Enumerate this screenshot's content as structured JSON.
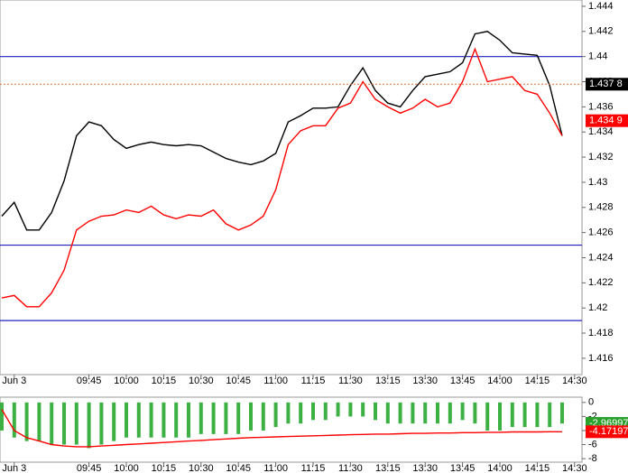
{
  "chart_data": [
    {
      "type": "line",
      "categories": [
        null,
        "Jun 3",
        null,
        null,
        null,
        null,
        null,
        "09:45",
        null,
        null,
        "10:00",
        null,
        null,
        "10:15",
        null,
        null,
        "10:30",
        null,
        null,
        "10:45",
        null,
        null,
        "11:00",
        null,
        null,
        "11:15",
        null,
        null,
        "11:30",
        null,
        null,
        "13:15",
        null,
        null,
        "13:30",
        null,
        null,
        "13:45",
        null,
        null,
        "14:00",
        null,
        null,
        "14:15",
        null,
        null,
        "14:30"
      ],
      "series": [
        {
          "color": "#000000",
          "values": [
            1.4273,
            1.4284,
            1.4262,
            1.4262,
            1.4276,
            1.4301,
            1.4337,
            1.4348,
            1.4345,
            1.4334,
            1.4327,
            1.433,
            1.4332,
            1.433,
            1.4329,
            1.433,
            1.4329,
            1.4324,
            1.4319,
            1.4316,
            1.4314,
            1.4317,
            1.4323,
            1.4348,
            1.4353,
            1.4359,
            1.4359,
            1.436,
            1.4377,
            1.4391,
            1.4373,
            1.4363,
            1.436,
            1.4373,
            1.4384,
            1.4386,
            1.4388,
            1.4395,
            1.4418,
            1.442,
            1.4413,
            1.4403,
            1.4402,
            1.4401,
            1.4377,
            1.4337,
            null
          ]
        },
        {
          "color": "#ff0000",
          "values": [
            1.4208,
            1.421,
            1.4201,
            1.4201,
            1.4212,
            1.423,
            1.4262,
            1.4269,
            1.4273,
            1.4274,
            1.4278,
            1.4276,
            1.4281,
            1.4274,
            1.4271,
            1.4274,
            1.4273,
            1.4278,
            1.4267,
            1.4262,
            1.4266,
            1.4273,
            1.4294,
            1.433,
            1.4341,
            1.4345,
            1.4345,
            1.4359,
            1.4363,
            1.438,
            1.4366,
            1.436,
            1.4355,
            1.4359,
            1.4366,
            1.436,
            1.4363,
            1.438,
            1.4406,
            1.438,
            1.4382,
            1.4384,
            1.4373,
            1.437,
            1.4355,
            1.4337,
            null
          ]
        }
      ],
      "hlines": [
        {
          "value": 1.44,
          "color": "#2020c0"
        },
        {
          "value": 1.425,
          "color": "#2020c0"
        },
        {
          "value": 1.419,
          "color": "#2020c0"
        }
      ],
      "price_tags": [
        {
          "value": 1.4378,
          "label": "1.437 8",
          "color": "#000000",
          "guide_color": "#e07030"
        },
        {
          "value": 1.4349,
          "label": "1.434 9",
          "color": "#ff0000"
        }
      ],
      "ylim": [
        1.4147,
        1.4445
      ],
      "yticks": [
        1.416,
        1.418,
        1.42,
        1.422,
        1.424,
        1.426,
        1.428,
        1.43,
        1.432,
        1.434,
        1.436,
        1.438,
        1.44,
        1.442,
        1.444
      ]
    },
    {
      "type": "histogram-line",
      "categories": [
        null,
        "Jun 3",
        null,
        null,
        null,
        null,
        null,
        "09:45",
        null,
        null,
        "10:00",
        null,
        null,
        "10:15",
        null,
        null,
        "10:30",
        null,
        null,
        "10:45",
        null,
        null,
        "11:00",
        null,
        null,
        "11:15",
        null,
        null,
        "11:30",
        null,
        null,
        "13:15",
        null,
        null,
        "13:30",
        null,
        null,
        "13:45",
        null,
        null,
        "14:00",
        null,
        null,
        "14:15",
        null,
        null,
        "14:30"
      ],
      "series": [
        {
          "kind": "bar",
          "color": "#3cb043",
          "values": [
            -4,
            -5,
            -5.5,
            -5.5,
            -6,
            -6,
            -6,
            -6.5,
            -6,
            -5.5,
            -5,
            -5,
            -5,
            -5,
            -5,
            -5,
            -4.5,
            -4.5,
            -4.5,
            -4.5,
            -4,
            -4,
            -3.5,
            -3,
            -3,
            -2.5,
            -2.5,
            -2,
            -2,
            -2,
            -2.5,
            -3,
            -3,
            -3,
            -3,
            -3,
            -3,
            -2.5,
            -3,
            -4,
            -4,
            -3.5,
            -3.5,
            -3.5,
            -3.5,
            -3,
            null
          ]
        },
        {
          "kind": "line",
          "color": "#ff0000",
          "values": [
            -1,
            -4,
            -5,
            -5.5,
            -6,
            -6.2,
            -6.3,
            -6.3,
            -6.2,
            -6.1,
            -6,
            -5.9,
            -5.8,
            -5.7,
            -5.6,
            -5.5,
            -5.4,
            -5.3,
            -5.2,
            -5.1,
            -5,
            -4.95,
            -4.9,
            -4.85,
            -4.8,
            -4.75,
            -4.7,
            -4.65,
            -4.6,
            -4.55,
            -4.5,
            -4.5,
            -4.45,
            -4.4,
            -4.4,
            -4.35,
            -4.35,
            -4.3,
            -4.3,
            -4.25,
            -4.25,
            -4.2,
            -4.2,
            -4.2,
            -4.17,
            -4.17,
            null
          ]
        }
      ],
      "price_tags": [
        {
          "value": -2.96997,
          "label": "-2.96997",
          "color": "#2ca02c"
        },
        {
          "value": -4.17197,
          "label": "-4.17197",
          "color": "#ff0000"
        }
      ],
      "ylim": [
        -8.5,
        0.75
      ],
      "yticks": [
        0,
        -2,
        -4,
        -6,
        -8
      ]
    }
  ]
}
